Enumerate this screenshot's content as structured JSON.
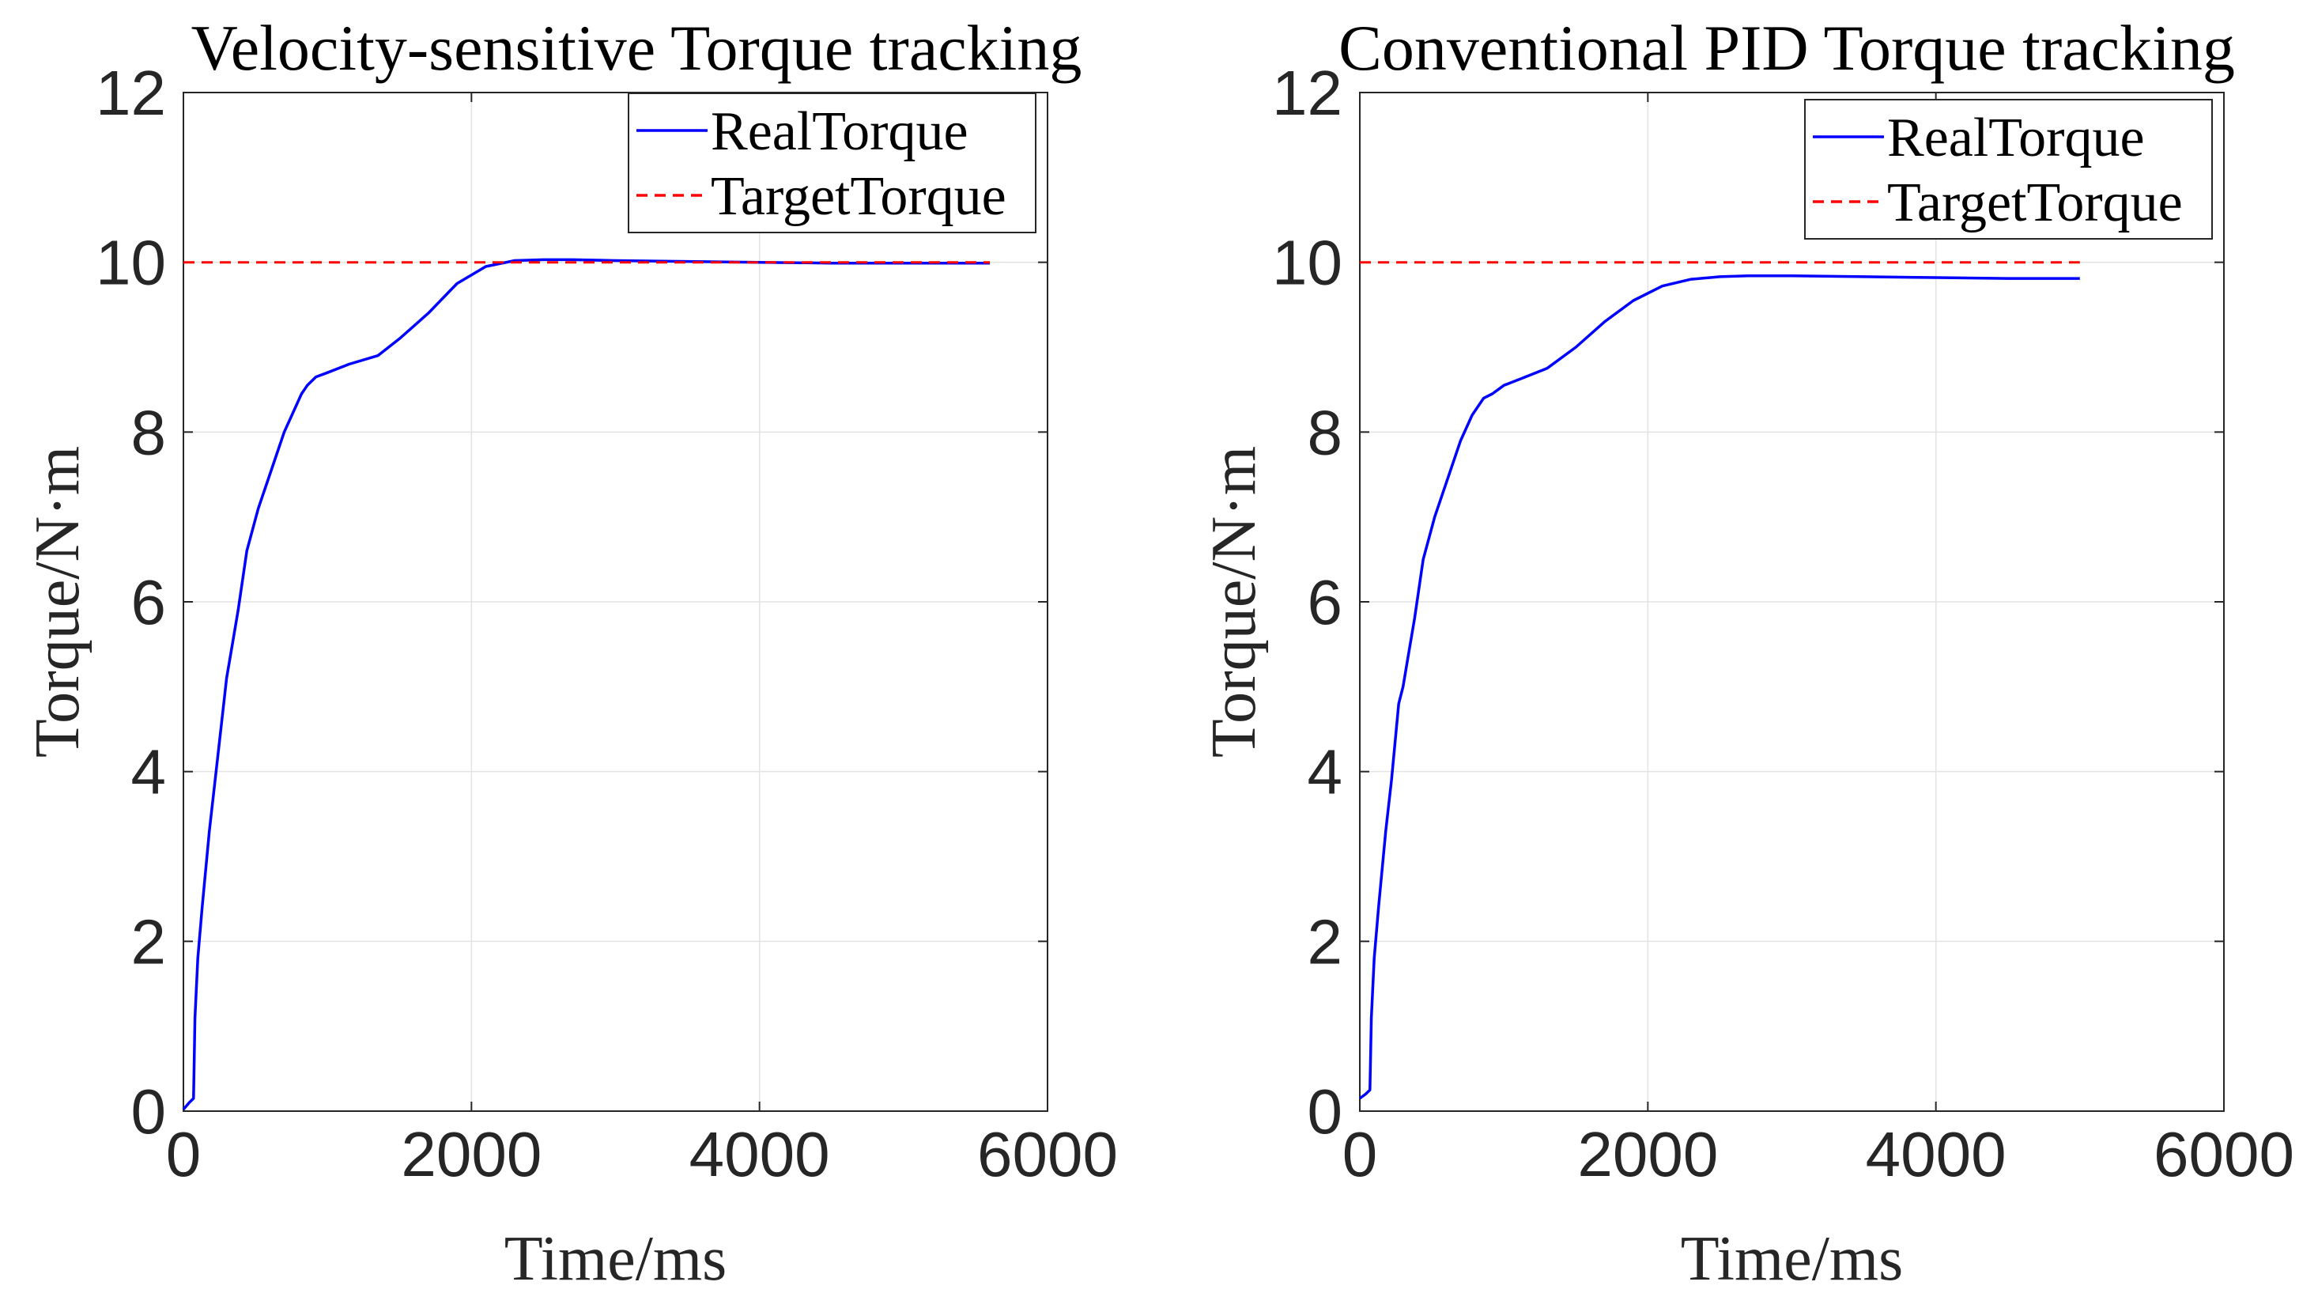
{
  "chart_data": [
    {
      "type": "line",
      "title": "Velocity-sensitive Torque tracking",
      "xlabel": "Time/ms",
      "ylabel": "Torque/N·m",
      "xlim": [
        0,
        6000
      ],
      "ylim": [
        0,
        12
      ],
      "xticks": [
        0,
        2000,
        4000,
        6000
      ],
      "yticks": [
        0,
        2,
        4,
        6,
        8,
        10,
        12
      ],
      "xtick_labels": [
        "0",
        "2000",
        "4000",
        "6000"
      ],
      "ytick_labels": [
        "0",
        "2",
        "4",
        "6",
        "8",
        "10",
        "12"
      ],
      "grid": true,
      "legend": "top-right",
      "series": [
        {
          "name": "RealTorque",
          "color": "#0000ff",
          "style": "solid",
          "x": [
            0,
            40,
            70,
            80,
            100,
            130,
            180,
            220,
            280,
            300,
            330,
            380,
            440,
            520,
            600,
            700,
            780,
            820,
            860,
            920,
            1000,
            1150,
            1350,
            1500,
            1700,
            1900,
            2100,
            2300,
            2500,
            2700,
            3000,
            3500,
            4000,
            4500,
            5000,
            5600
          ],
          "y": [
            0.02,
            0.1,
            0.15,
            1.1,
            1.8,
            2.4,
            3.3,
            3.9,
            4.8,
            5.1,
            5.4,
            5.9,
            6.6,
            7.1,
            7.5,
            8.0,
            8.3,
            8.45,
            8.55,
            8.65,
            8.7,
            8.8,
            8.9,
            9.1,
            9.4,
            9.75,
            9.95,
            10.02,
            10.03,
            10.03,
            10.02,
            10.01,
            10.0,
            9.99,
            9.99,
            9.99
          ]
        },
        {
          "name": "TargetTorque",
          "color": "#ff0000",
          "style": "dashed",
          "x": [
            0,
            5600
          ],
          "y": [
            10,
            10
          ]
        }
      ]
    },
    {
      "type": "line",
      "title": "Conventional PID Torque tracking",
      "xlabel": "Time/ms",
      "ylabel": "Torque/N·m",
      "xlim": [
        0,
        6000
      ],
      "ylim": [
        0,
        12
      ],
      "xticks": [
        0,
        2000,
        4000,
        6000
      ],
      "yticks": [
        0,
        2,
        4,
        6,
        8,
        10,
        12
      ],
      "xtick_labels": [
        "0",
        "2000",
        "4000",
        "6000"
      ],
      "ytick_labels": [
        "0",
        "2",
        "4",
        "6",
        "8",
        "10",
        "12"
      ],
      "grid": true,
      "legend": "top-right",
      "series": [
        {
          "name": "RealTorque",
          "color": "#0000ff",
          "style": "solid",
          "x": [
            0,
            40,
            70,
            80,
            100,
            130,
            180,
            220,
            270,
            300,
            330,
            380,
            440,
            520,
            600,
            700,
            780,
            820,
            860,
            920,
            1000,
            1150,
            1300,
            1500,
            1700,
            1900,
            2100,
            2300,
            2500,
            2700,
            3000,
            3500,
            4000,
            4500,
            5000
          ],
          "y": [
            0.15,
            0.2,
            0.25,
            1.1,
            1.8,
            2.4,
            3.3,
            3.9,
            4.8,
            5.0,
            5.3,
            5.8,
            6.5,
            7.0,
            7.4,
            7.9,
            8.2,
            8.3,
            8.4,
            8.45,
            8.55,
            8.65,
            8.75,
            9.0,
            9.3,
            9.55,
            9.72,
            9.8,
            9.83,
            9.84,
            9.84,
            9.83,
            9.82,
            9.81,
            9.81
          ]
        },
        {
          "name": "TargetTorque",
          "color": "#ff0000",
          "style": "dashed",
          "x": [
            0,
            5000
          ],
          "y": [
            10,
            10
          ]
        }
      ]
    }
  ]
}
